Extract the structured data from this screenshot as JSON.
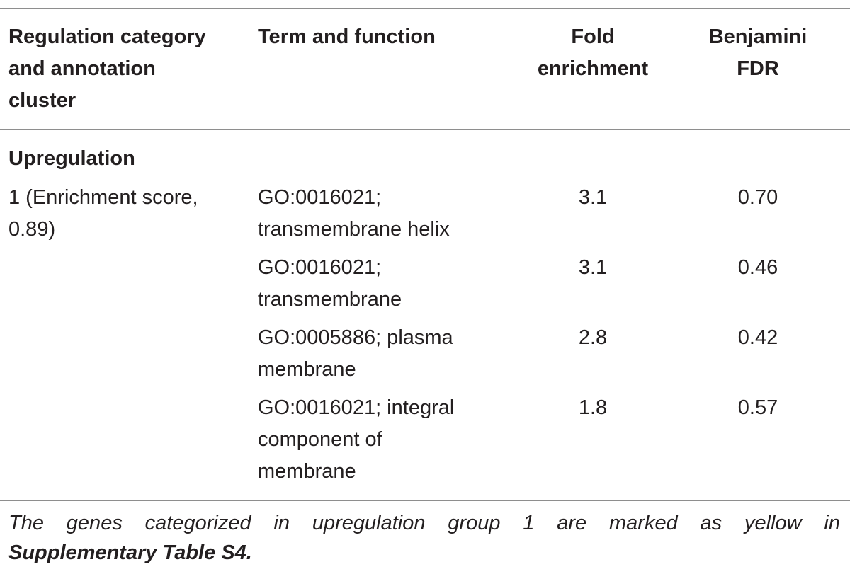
{
  "table": {
    "headers": {
      "col1": [
        "Regulation category",
        "and annotation",
        "cluster"
      ],
      "col2": [
        "Term and function"
      ],
      "col3": [
        "Fold",
        "enrichment"
      ],
      "col4": [
        "Benjamini",
        "FDR"
      ]
    },
    "section_label": "Upregulation",
    "cluster_label": [
      "1 (Enrichment score,",
      "0.89)"
    ],
    "rows": [
      {
        "term": [
          "GO:0016021;",
          "transmembrane helix"
        ],
        "fold": "3.1",
        "fdr": "0.70"
      },
      {
        "term": [
          "GO:0016021;",
          "transmembrane"
        ],
        "fold": "3.1",
        "fdr": "0.46"
      },
      {
        "term": [
          "GO:0005886; plasma",
          "membrane"
        ],
        "fold": "2.8",
        "fdr": "0.42"
      },
      {
        "term": [
          "GO:0016021; integral",
          "component of",
          "membrane"
        ],
        "fold": "1.8",
        "fdr": "0.57"
      }
    ]
  },
  "footnote": {
    "line1": "The genes categorized in upregulation group 1 are marked as yellow in",
    "line2": "Supplementary Table S4."
  }
}
